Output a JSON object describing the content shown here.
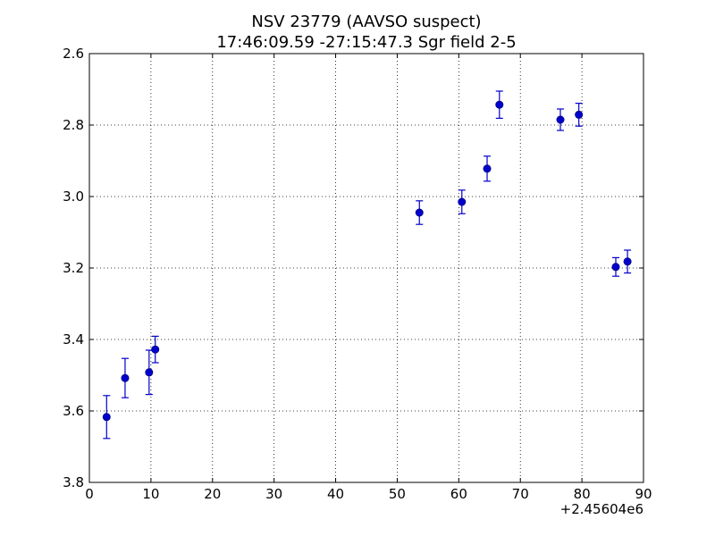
{
  "chart_data": {
    "type": "scatter",
    "title": "NSV 23779 (AAVSO suspect)",
    "subtitle": "17:46:09.59 -27:15:47.3 Sgr field 2-5",
    "xlabel": "",
    "ylabel": "",
    "x_offset_label": "+2.45604e6",
    "xlim": [
      0,
      90
    ],
    "ylim": [
      2.6,
      3.8
    ],
    "y_inverted": true,
    "x_ticks": [
      0,
      10,
      20,
      30,
      40,
      50,
      60,
      70,
      80,
      90
    ],
    "x_tick_labels": [
      "0",
      "10",
      "20",
      "30",
      "40",
      "50",
      "60",
      "70",
      "80",
      "90"
    ],
    "y_ticks": [
      2.6,
      2.8,
      3.0,
      3.2,
      3.4,
      3.6,
      3.8
    ],
    "y_tick_labels": [
      "2.6",
      "2.8",
      "3.0",
      "3.2",
      "3.4",
      "3.6",
      "3.8"
    ],
    "grid": true,
    "marker_color": "#0000cc",
    "series": [
      {
        "x": [
          2.8,
          5.8,
          9.7,
          10.7,
          53.6,
          60.5,
          64.6,
          66.6,
          76.5,
          79.5,
          85.5,
          87.4
        ],
        "y": [
          3.617,
          3.508,
          3.492,
          3.428,
          3.045,
          3.015,
          2.922,
          2.743,
          2.785,
          2.771,
          3.197,
          3.182
        ],
        "yerr": [
          0.06,
          0.055,
          0.062,
          0.037,
          0.033,
          0.033,
          0.035,
          0.038,
          0.03,
          0.032,
          0.026,
          0.032
        ]
      }
    ]
  }
}
